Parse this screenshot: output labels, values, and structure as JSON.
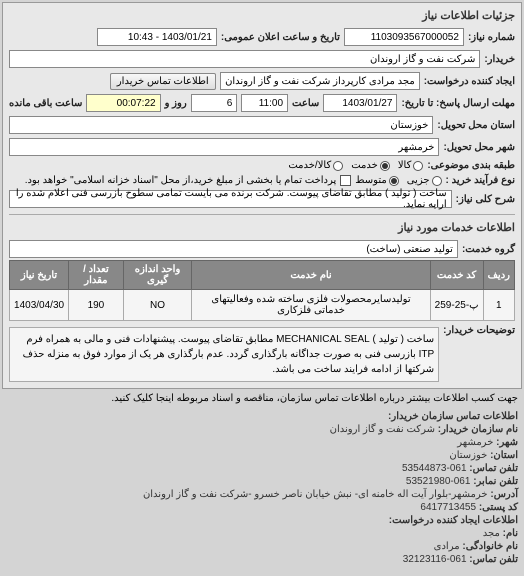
{
  "panel_title": "جزئیات اطلاعات نیاز",
  "header": {
    "req_no_label": "شماره نیاز:",
    "req_no": "1103093567000052",
    "date_label": "تاریخ و ساعت اعلان عمومی:",
    "date": "1403/01/21 - 10:43",
    "buyer_label": "خریدار:",
    "buyer": "شرکت نفت و گاز اروندان",
    "creator_label": "ایجاد کننده درخواست:",
    "creator": "مجد مرادی کارپرداز شرکت نفت و گاز اروندان",
    "contact_btn": "اطلاعات تماس خریدار",
    "deadline_label": "مهلت ارسال پاسخ: تا تاریخ:",
    "deadline_date": "1403/01/27",
    "time_label": "ساعت",
    "deadline_time": "11:00",
    "days_label": "روز و",
    "days": "6",
    "remain_time": "00:07:22",
    "remain_label": "ساعت باقی مانده",
    "province_label": "استان محل تحویل:",
    "province": "خوزستان",
    "city_label": "شهر محل تحویل:",
    "city": "خرمشهر",
    "category_label": "طبقه بندی موضوعی:",
    "goods": "کالا",
    "service": "خدمت",
    "both": "کالا/خدمت",
    "process_label": "نوع فرآیند خرید :",
    "small": "جزیی",
    "medium": "متوسط",
    "payment_note": "پرداخت تمام یا بخشی از مبلغ خرید،از محل \"اسناد خزانه اسلامی\" خواهد بود.",
    "title_label": "شرح کلی نیاز:",
    "title": "ساخت ( تولید ) مطابق تقاضای پیوست. شرکت برنده می بایست تمامی سطوح بازرسی فنی اعلام شده را ارایه نماید."
  },
  "services_title": "اطلاعات خدمات مورد نیاز",
  "group_label": "گروه خدمت:",
  "group": "تولید صنعتی (ساخت)",
  "table": {
    "headers": [
      "ردیف",
      "کد خدمت",
      "نام خدمت",
      "واحد اندازه گیری",
      "تعداد / مقدار",
      "تاریخ نیاز"
    ],
    "rows": [
      [
        "1",
        "پ-25-259",
        "تولیدسایرمحصولات فلزی ساخته شده وفعالیتهای خدماتی فلزکاری",
        "NO",
        "190",
        "1403/04/30"
      ]
    ]
  },
  "desc_label": "توضیحات خریدار:",
  "desc": "ساخت ( تولید ) MECHANICAL SEAL مطابق تقاضای پیوست. پیشنهادات فنی و مالی به همراه فرم ITP بازرسی فنی به صورت جداگانه بارگذاری گردد. عدم بارگذاری هر یک از موارد فوق به منزله حذف شرکتها از ادامه فرایند ساخت می باشد.",
  "notice": "جهت کسب اطلاعات بیشتر درباره اطلاعات تماس سازمان، مناقصه و اسناد مربوطه اینجا کلیک کنید.",
  "contact": {
    "title": "اطلاعات تماس سازمان خریدار:",
    "org_label": "نام سازمان خریدار:",
    "org": "شرکت نفت و گاز اروندان",
    "city_label": "شهر:",
    "city": "خرمشهر",
    "province_label": "استان:",
    "province": "خوزستان",
    "phone_label": "تلفن تماس:",
    "phone": "061-53544873",
    "fax_label": "تلفن نمابر:",
    "fax": "061-53521980",
    "postal_label": "کد پستی:",
    "postal": "6417713455",
    "addr_label": "آدرس:",
    "addr": "خرمشهر-بلوار آیت اله خامنه ای- نبش خیابان ناصر خسرو -شرکت نفت و گاز اروندان",
    "creator_title": "اطلاعات ایجاد کننده درخواست:",
    "name_label": "نام:",
    "name": "مجد",
    "lname_label": "نام خانوادگی:",
    "lname": "مرادی",
    "cphone_label": "تلفن تماس:",
    "cphone": "061-32123116"
  },
  "colors": {
    "window_bg": "#e8e8e8",
    "header_bg": "#888888",
    "field_bg": "#ffffff",
    "border": "#888888"
  }
}
